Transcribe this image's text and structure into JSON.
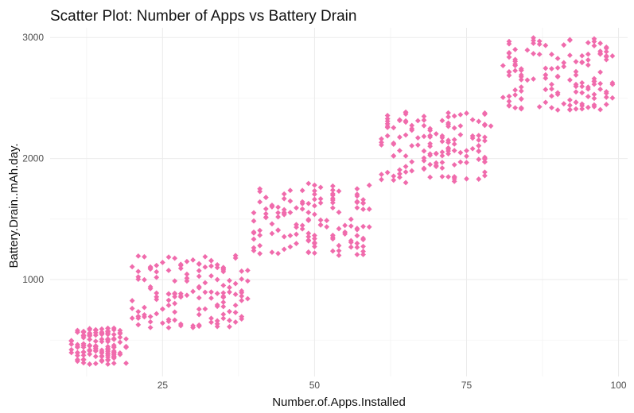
{
  "chart_data": {
    "type": "scatter",
    "title": "Scatter Plot: Number of Apps vs Battery Drain",
    "xlabel": "Number.of.Apps.Installed",
    "ylabel": "Battery.Drain..mAh.day.",
    "xlim": [
      6.5,
      101.5
    ],
    "ylim": [
      200,
      3080
    ],
    "x_ticks": [
      25,
      50,
      75,
      100
    ],
    "y_ticks": [
      1000,
      2000,
      3000
    ],
    "grid": true,
    "legend": "none",
    "point_color": "#f06bac",
    "point_shape": "diamond",
    "clusters": [
      {
        "x_range": [
          10,
          19
        ],
        "y_range": [
          300,
          600
        ],
        "count": 140
      },
      {
        "x_range": [
          20,
          39
        ],
        "y_range": [
          600,
          1200
        ],
        "count": 140
      },
      {
        "x_range": [
          40,
          59
        ],
        "y_range": [
          1200,
          1800
        ],
        "count": 140
      },
      {
        "x_range": [
          61,
          79
        ],
        "y_range": [
          1800,
          2400
        ],
        "count": 140
      },
      {
        "x_range": [
          81,
          99
        ],
        "y_range": [
          2400,
          3000
        ],
        "count": 140
      }
    ]
  }
}
